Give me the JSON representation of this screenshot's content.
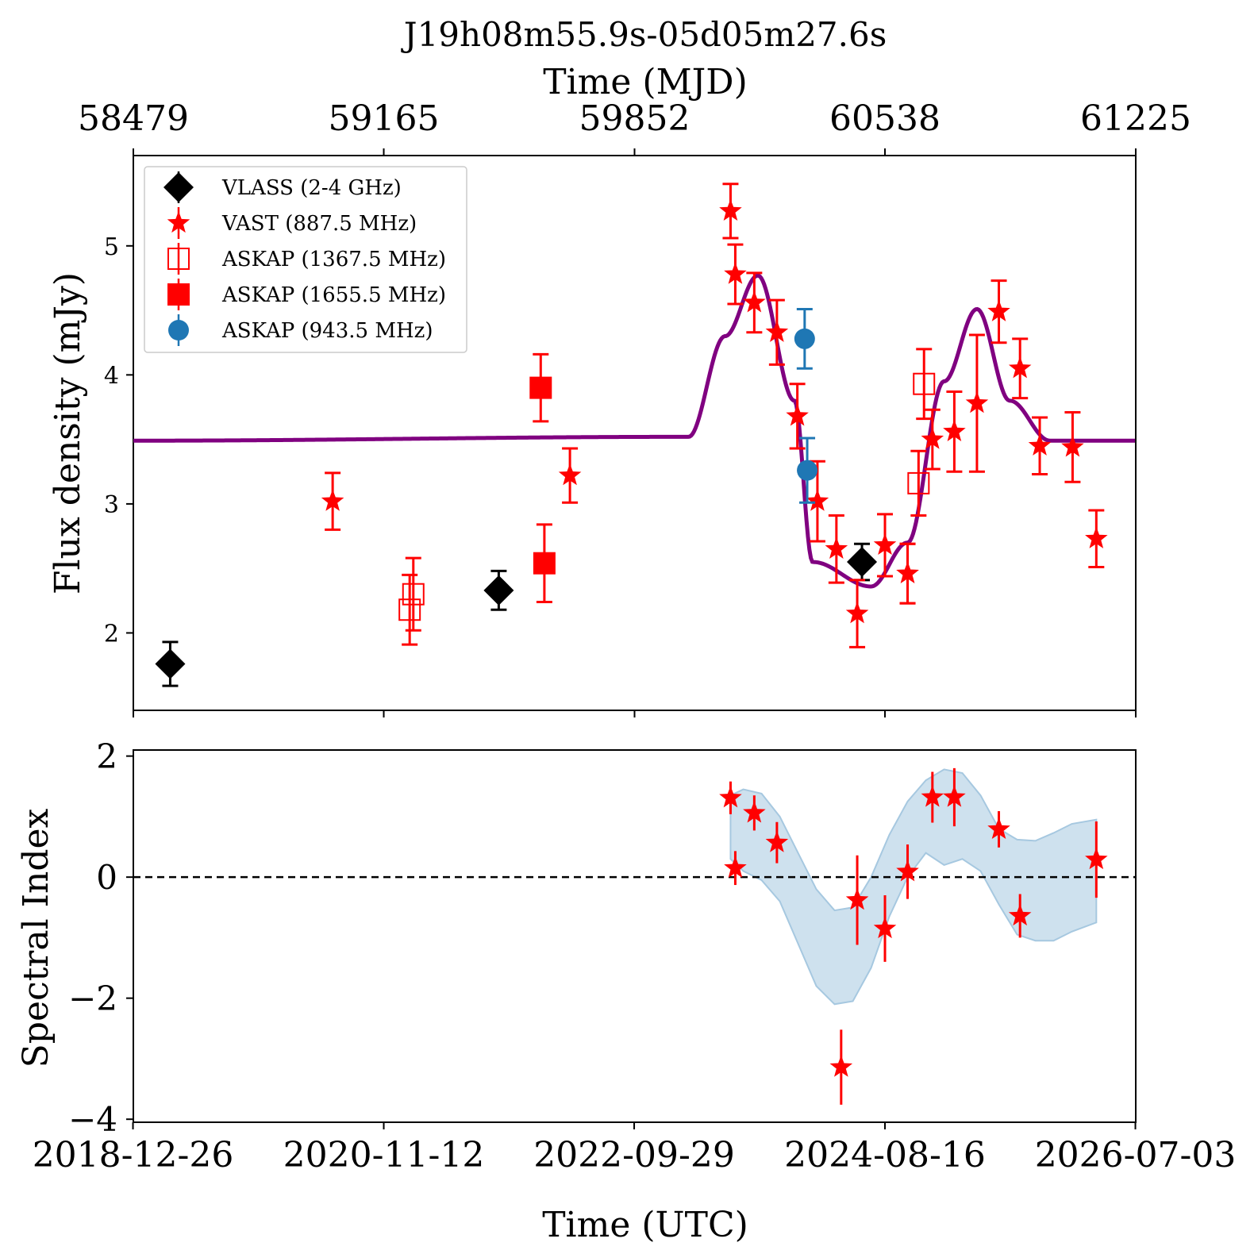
{
  "title": "J19h08m55.9s-05d05m27.6s",
  "top_xlabel": "Time (MJD)",
  "bottom_xlabel": "Time (UTC)",
  "colors": {
    "vlass": "#000000",
    "vast": "#ff0000",
    "askap1367": "#ff0000",
    "askap1655": "#ff0000",
    "askap943": "#1f77b4",
    "model": "#800080",
    "band": "#a6c8e0"
  },
  "chart_data": [
    {
      "type": "scatter",
      "ylabel": "Flux density (mJy)",
      "xlim_mjd": [
        58479,
        61225
      ],
      "ylim": [
        1.4,
        5.7
      ],
      "yticks": [
        2,
        3,
        4,
        5
      ],
      "top_xticks": [
        "58479",
        "59165",
        "59852",
        "60538",
        "61225"
      ],
      "top_xticks_mjd": [
        58479,
        59165,
        59852,
        60538,
        61225
      ],
      "legend_position": "top-left",
      "legend": [
        "VLASS (2-4 GHz)",
        "VAST (887.5 MHz)",
        "ASKAP (1367.5 MHz)",
        "ASKAP (1655.5 MHz)",
        "ASKAP (943.5 MHz)"
      ],
      "series": [
        {
          "key": "vlass",
          "marker": "diamond",
          "points": [
            {
              "mjd": 58580,
              "y": 1.76,
              "err": 0.17
            },
            {
              "mjd": 59480,
              "y": 2.33,
              "err": 0.15
            },
            {
              "mjd": 60475,
              "y": 2.55,
              "err": 0.14
            }
          ]
        },
        {
          "key": "vast",
          "marker": "star",
          "points": [
            {
              "mjd": 59025,
              "y": 3.02,
              "err": 0.22
            },
            {
              "mjd": 59675,
              "y": 3.22,
              "err": 0.21
            },
            {
              "mjd": 60115,
              "y": 5.27,
              "err": 0.21
            },
            {
              "mjd": 60128,
              "y": 4.78,
              "err": 0.23
            },
            {
              "mjd": 60180,
              "y": 4.56,
              "err": 0.23
            },
            {
              "mjd": 60242,
              "y": 4.33,
              "err": 0.25
            },
            {
              "mjd": 60298,
              "y": 3.68,
              "err": 0.25
            },
            {
              "mjd": 60353,
              "y": 3.02,
              "err": 0.31
            },
            {
              "mjd": 60405,
              "y": 2.65,
              "err": 0.26
            },
            {
              "mjd": 60462,
              "y": 2.15,
              "err": 0.26
            },
            {
              "mjd": 60538,
              "y": 2.68,
              "err": 0.24
            },
            {
              "mjd": 60600,
              "y": 2.46,
              "err": 0.23
            },
            {
              "mjd": 60600,
              "y": 2.46,
              "err": 0.23
            },
            {
              "mjd": 60668,
              "y": 3.5,
              "err": 0.23
            },
            {
              "mjd": 60728,
              "y": 3.56,
              "err": 0.31
            },
            {
              "mjd": 60790,
              "y": 3.78,
              "err": 0.53
            },
            {
              "mjd": 60850,
              "y": 4.49,
              "err": 0.24
            },
            {
              "mjd": 60908,
              "y": 4.05,
              "err": 0.23
            },
            {
              "mjd": 60962,
              "y": 3.45,
              "err": 0.22
            },
            {
              "mjd": 61052,
              "y": 3.44,
              "err": 0.27
            },
            {
              "mjd": 61117,
              "y": 2.73,
              "err": 0.22
            }
          ]
        },
        {
          "key": "askap1367",
          "marker": "square-open",
          "points": [
            {
              "mjd": 59236,
              "y": 2.18,
              "err": 0.27
            },
            {
              "mjd": 59246,
              "y": 2.3,
              "err": 0.28
            },
            {
              "mjd": 60630,
              "y": 3.16,
              "err": 0.25
            },
            {
              "mjd": 60645,
              "y": 3.93,
              "err": 0.27
            }
          ]
        },
        {
          "key": "askap1655",
          "marker": "square",
          "points": [
            {
              "mjd": 59595,
              "y": 3.9,
              "err": 0.26
            },
            {
              "mjd": 59605,
              "y": 2.54,
              "err": 0.3
            }
          ]
        },
        {
          "key": "askap943",
          "marker": "circle",
          "points": [
            {
              "mjd": 60318,
              "y": 4.28,
              "err": 0.23
            },
            {
              "mjd": 60325,
              "y": 3.26,
              "err": 0.25
            }
          ]
        }
      ],
      "model_curve": {
        "baseline": 3.49,
        "description_points_mjd": [
          58479,
          60000,
          60100,
          60190,
          60290,
          60340,
          60500,
          60600,
          60700,
          60790,
          60880,
          60990,
          61225
        ],
        "description_points_y": [
          3.49,
          3.52,
          4.3,
          4.77,
          3.8,
          2.55,
          2.36,
          2.7,
          3.95,
          4.51,
          3.8,
          3.49,
          3.49
        ]
      }
    },
    {
      "type": "scatter",
      "ylabel": "Spectral Index",
      "xlim_mjd": [
        58479,
        61225
      ],
      "ylim": [
        -4.05,
        2.1
      ],
      "yticks": [
        2,
        0,
        -2,
        -4
      ],
      "ytick_labels": [
        "2",
        "0",
        "−2",
        "−4"
      ],
      "bottom_xticks": [
        "2018-12-26",
        "2020-11-12",
        "2022-09-29",
        "2024-08-16",
        "2026-07-03"
      ],
      "bottom_xticks_mjd": [
        58478,
        59165,
        59851,
        60538,
        61224
      ],
      "zero_line": 0,
      "series": [
        {
          "key": "vast",
          "marker": "star",
          "points": [
            {
              "mjd": 60115,
              "y": 1.31,
              "err": 0.27
            },
            {
              "mjd": 60128,
              "y": 0.15,
              "err": 0.28
            },
            {
              "mjd": 60180,
              "y": 1.06,
              "err": 0.29
            },
            {
              "mjd": 60242,
              "y": 0.57,
              "err": 0.34
            },
            {
              "mjd": 60418,
              "y": -3.14,
              "err": 0.62
            },
            {
              "mjd": 60462,
              "y": -0.38,
              "err": 0.74
            },
            {
              "mjd": 60538,
              "y": -0.85,
              "err": 0.55
            },
            {
              "mjd": 60600,
              "y": 0.09,
              "err": 0.45
            },
            {
              "mjd": 60668,
              "y": 1.32,
              "err": 0.42
            },
            {
              "mjd": 60728,
              "y": 1.32,
              "err": 0.48
            },
            {
              "mjd": 60850,
              "y": 0.79,
              "err": 0.3
            },
            {
              "mjd": 60908,
              "y": -0.64,
              "err": 0.36
            },
            {
              "mjd": 61117,
              "y": 0.29,
              "err": 0.63
            }
          ]
        }
      ],
      "band": {
        "mjd": [
          60115,
          60150,
          60200,
          60250,
          60300,
          60350,
          60400,
          60450,
          60500,
          60550,
          60600,
          60650,
          60700,
          60750,
          60800,
          60850,
          60900,
          60950,
          61000,
          61050,
          61117
        ],
        "upper": [
          1.35,
          1.45,
          1.38,
          1.0,
          0.4,
          -0.2,
          -0.55,
          -0.5,
          0.0,
          0.7,
          1.25,
          1.6,
          1.78,
          1.72,
          1.35,
          0.8,
          0.62,
          0.6,
          0.73,
          0.88,
          0.95
        ],
        "lower": [
          0.3,
          0.1,
          -0.05,
          -0.4,
          -1.1,
          -1.8,
          -2.1,
          -2.05,
          -1.5,
          -0.65,
          0.0,
          0.4,
          0.2,
          0.3,
          0.1,
          -0.45,
          -0.95,
          -1.05,
          -1.05,
          -0.9,
          -0.75
        ]
      }
    }
  ]
}
